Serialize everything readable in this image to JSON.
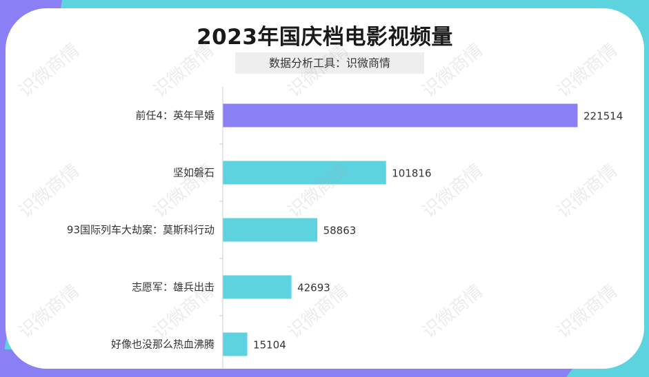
{
  "colors": {
    "highlight_bar": "#8b7ff5",
    "bar": "#5dd3df",
    "axis": "#cccccc"
  },
  "watermark_text": "识微商情",
  "chart_data": {
    "type": "bar",
    "orientation": "horizontal",
    "title": "2023年国庆档电影视频量",
    "subtitle": "数据分析工具：识微商情",
    "categories": [
      "前任4：英年早婚",
      "坚如磐石",
      "93国际列车大劫案：莫斯科行动",
      "志愿军：雄兵出击",
      "好像也没那么热血沸腾"
    ],
    "values": [
      221514,
      101816,
      58863,
      42693,
      15104
    ],
    "highlight_index": 0,
    "xlim": [
      0,
      221514
    ],
    "grid": false,
    "legend": "none"
  }
}
